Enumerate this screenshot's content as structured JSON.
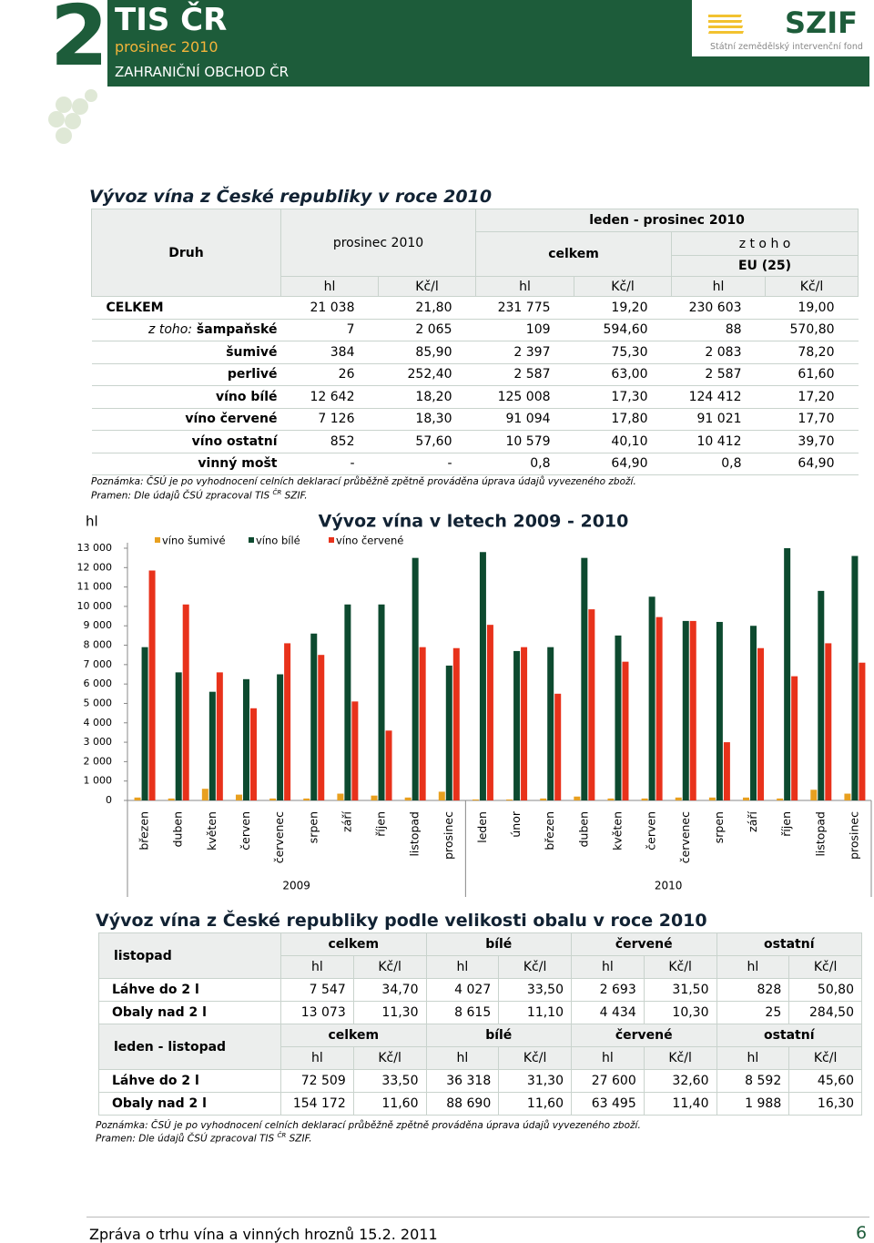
{
  "header": {
    "number": "2",
    "title": "TIS ČR",
    "subtitle": "prosinec 2010",
    "section": "ZAHRANIČNÍ OBCHOD ČR",
    "logo": "SZIF",
    "logo_sub": "Státní zemědělský intervenční fond"
  },
  "table1": {
    "title": "Vývoz vína z České republiky v roce 2010",
    "header": {
      "druh": "Druh",
      "prosinec": "prosinec 2010",
      "period": "leden - prosinec 2010",
      "celkem": "celkem",
      "ztoho": "z t o h o",
      "eu": "EU (25)",
      "units": [
        "hl",
        "Kč/l",
        "hl",
        "Kč/l",
        "hl",
        "Kč/l"
      ]
    },
    "rows": [
      {
        "label": "CELKEM",
        "values": [
          "21 038",
          "21,80",
          "231 775",
          "19,20",
          "230 603",
          "19,00"
        ]
      },
      {
        "prefix": "z toho:",
        "label": "šampaňské",
        "values": [
          "7",
          "2 065",
          "109",
          "594,60",
          "88",
          "570,80"
        ]
      },
      {
        "label": "šumivé",
        "values": [
          "384",
          "85,90",
          "2 397",
          "75,30",
          "2 083",
          "78,20"
        ]
      },
      {
        "label": "perlivé",
        "values": [
          "26",
          "252,40",
          "2 587",
          "63,00",
          "2 587",
          "61,60"
        ]
      },
      {
        "label": "víno bílé",
        "values": [
          "12 642",
          "18,20",
          "125 008",
          "17,30",
          "124 412",
          "17,20"
        ]
      },
      {
        "label": "víno červené",
        "values": [
          "7 126",
          "18,30",
          "91 094",
          "17,80",
          "91 021",
          "17,70"
        ]
      },
      {
        "label": "víno ostatní",
        "values": [
          "852",
          "57,60",
          "10 579",
          "40,10",
          "10 412",
          "39,70"
        ]
      },
      {
        "label": "vinný mošt",
        "values": [
          "-",
          "-",
          "0,8",
          "64,90",
          "0,8",
          "64,90"
        ]
      }
    ],
    "note": "Poznámka: ČSÚ je po vyhodnocení celních deklarací průběžně zpětně prováděna úprava údajů vyvezeného zboží.",
    "source": [
      "Pramen: Dle údajů ČSÚ zpracoval TIS ",
      "ČR",
      " SZIF."
    ]
  },
  "chart_data": {
    "type": "bar",
    "title": "Vývoz vína v letech 2009 - 2010",
    "y_label": "hl",
    "legend": "top",
    "category_groups": [
      {
        "name": "2009",
        "categories": [
          "březen",
          "duben",
          "květen",
          "červen",
          "červenec",
          "srpen",
          "září",
          "říjen",
          "listopad",
          "prosinec"
        ]
      },
      {
        "name": "2010",
        "categories": [
          "leden",
          "únor",
          "březen",
          "duben",
          "květen",
          "červen",
          "červenec",
          "srpen",
          "září",
          "říjen",
          "listopad",
          "prosinec"
        ]
      }
    ],
    "series": [
      {
        "name": "víno šumivé",
        "color": "#e8a020",
        "values": [
          150,
          100,
          600,
          300,
          100,
          100,
          350,
          250,
          150,
          450,
          50,
          50,
          100,
          200,
          100,
          100,
          150,
          150,
          150,
          100,
          550,
          350
        ]
      },
      {
        "name": "víno bílé",
        "color": "#0d4a2f",
        "values": [
          7900,
          6600,
          5600,
          6250,
          6500,
          8600,
          10100,
          10100,
          12500,
          6950,
          12800,
          7700,
          7900,
          12500,
          8500,
          10500,
          9250,
          9200,
          9000,
          13000,
          10800,
          12600
        ]
      },
      {
        "name": "víno červené",
        "color": "#e8321b",
        "values": [
          11850,
          10100,
          6600,
          4750,
          8100,
          7500,
          5100,
          3600,
          7900,
          7850,
          9050,
          7900,
          5500,
          9850,
          7150,
          9450,
          9250,
          3000,
          7850,
          6400,
          8100,
          7100
        ]
      }
    ],
    "ylim": [
      0,
      13000
    ],
    "yticks": [
      0,
      {
        "value": 1000,
        "label": "1 000"
      },
      {
        "value": 2000,
        "label": "2 000"
      },
      {
        "value": 3000,
        "label": "3 000"
      },
      {
        "value": 4000,
        "label": "4 000"
      },
      {
        "value": 5000,
        "label": "5 000"
      },
      {
        "value": 6000,
        "label": "6 000"
      },
      {
        "value": 7000,
        "label": "7 000"
      },
      {
        "value": 8000,
        "label": "8 000"
      },
      {
        "value": 9000,
        "label": "9 000"
      },
      {
        "value": 10000,
        "label": "10 000"
      },
      {
        "value": 11000,
        "label": "11 000"
      },
      {
        "value": 12000,
        "label": "12 000"
      },
      {
        "value": 13000,
        "label": "13 000"
      }
    ]
  },
  "table2": {
    "title": "Vývoz vína z České republiky podle velikosti obalu v roce 2010",
    "sections": [
      {
        "label": "listopad",
        "groups": [
          "celkem",
          "bílé",
          "červené",
          "ostatní"
        ],
        "units": [
          "hl",
          "Kč/l",
          "hl",
          "Kč/l",
          "hl",
          "Kč/l",
          "hl",
          "Kč/l"
        ],
        "rows": [
          {
            "label": "Láhve do 2 l",
            "values": [
              "7 547",
              "34,70",
              "4 027",
              "33,50",
              "2 693",
              "31,50",
              "828",
              "50,80"
            ]
          },
          {
            "label": "Obaly nad 2 l",
            "values": [
              "13 073",
              "11,30",
              "8 615",
              "11,10",
              "4 434",
              "10,30",
              "25",
              "284,50"
            ]
          }
        ]
      },
      {
        "label": "leden - listopad",
        "groups": [
          "celkem",
          "bílé",
          "červené",
          "ostatní"
        ],
        "units": [
          "hl",
          "Kč/l",
          "hl",
          "Kč/l",
          "hl",
          "Kč/l",
          "hl",
          "Kč/l"
        ],
        "rows": [
          {
            "label": "Láhve do 2 l",
            "values": [
              "72 509",
              "33,50",
              "36 318",
              "31,30",
              "27 600",
              "32,60",
              "8 592",
              "45,60"
            ]
          },
          {
            "label": "Obaly nad 2 l",
            "values": [
              "154 172",
              "11,60",
              "88 690",
              "11,60",
              "63 495",
              "11,40",
              "1 988",
              "16,30"
            ]
          }
        ]
      }
    ],
    "note": "Poznámka: ČSÚ je po vyhodnocení celních deklarací průběžně zpětně prováděna úprava údajů vyvezeného zboží.",
    "source": [
      "Pramen: Dle údajů ČSÚ zpracoval TIS ",
      "ČR",
      " SZIF."
    ]
  },
  "footer": {
    "text": "Zpráva o trhu vína a vinných hroznů 15.2. 2011",
    "page": "6"
  }
}
